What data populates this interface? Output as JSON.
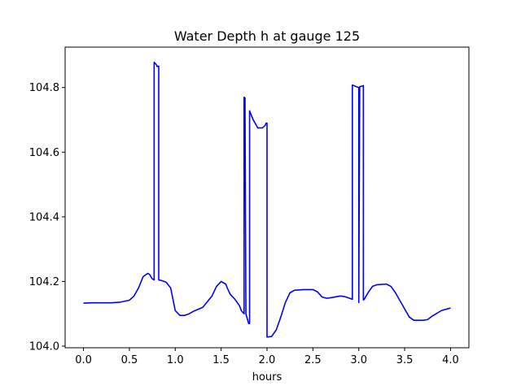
{
  "chart_data": {
    "type": "line",
    "title": "Water Depth h at gauge 125",
    "xlabel": "hours",
    "ylabel": "",
    "xlim": [
      -0.2,
      4.2
    ],
    "ylim": [
      103.995,
      104.925
    ],
    "x_ticks": [
      0.0,
      0.5,
      1.0,
      1.5,
      2.0,
      2.5,
      3.0,
      3.5,
      4.0
    ],
    "x_tick_labels": [
      "0.0",
      "0.5",
      "1.0",
      "1.5",
      "2.0",
      "2.5",
      "3.0",
      "3.5",
      "4.0"
    ],
    "y_ticks": [
      104.0,
      104.2,
      104.4,
      104.6,
      104.8
    ],
    "y_tick_labels": [
      "104.0",
      "104.2",
      "104.4",
      "104.6",
      "104.8"
    ],
    "grid": false,
    "series": [
      {
        "color": "#0000ff",
        "x": [
          0.0,
          0.1,
          0.2,
          0.3,
          0.4,
          0.5,
          0.55,
          0.6,
          0.65,
          0.7,
          0.72,
          0.75,
          0.77,
          0.77,
          0.79,
          0.8,
          0.8,
          0.82,
          0.82,
          0.85,
          0.9,
          0.95,
          1.0,
          1.05,
          1.1,
          1.15,
          1.2,
          1.3,
          1.4,
          1.45,
          1.5,
          1.55,
          1.57,
          1.6,
          1.65,
          1.7,
          1.72,
          1.75,
          1.75,
          1.76,
          1.77,
          1.8,
          1.81,
          1.81,
          1.85,
          1.9,
          1.95,
          1.98,
          1.99,
          2.0,
          2.0,
          2.05,
          2.1,
          2.15,
          2.2,
          2.25,
          2.3,
          2.4,
          2.5,
          2.55,
          2.6,
          2.65,
          2.7,
          2.8,
          2.85,
          2.9,
          2.93,
          2.93,
          2.97,
          3.0,
          3.0,
          3.01,
          3.02,
          3.05,
          3.05,
          3.06,
          3.1,
          3.15,
          3.2,
          3.3,
          3.35,
          3.4,
          3.5,
          3.55,
          3.6,
          3.7,
          3.75,
          3.8,
          3.9,
          4.0
        ],
        "y": [
          104.133,
          104.134,
          104.134,
          104.134,
          104.136,
          104.142,
          104.155,
          104.18,
          104.215,
          104.225,
          104.222,
          104.208,
          104.205,
          104.878,
          104.872,
          104.868,
          104.865,
          104.866,
          104.205,
          104.203,
          104.198,
          104.18,
          104.11,
          104.095,
          104.095,
          104.1,
          104.108,
          104.12,
          104.155,
          104.185,
          104.2,
          104.192,
          104.178,
          104.16,
          104.145,
          104.125,
          104.11,
          104.1,
          104.77,
          104.768,
          104.1,
          104.07,
          104.07,
          104.728,
          104.7,
          104.675,
          104.675,
          104.683,
          104.69,
          104.69,
          104.028,
          104.03,
          104.05,
          104.09,
          104.135,
          104.165,
          104.173,
          104.175,
          104.175,
          104.168,
          104.152,
          104.148,
          104.15,
          104.155,
          104.153,
          104.148,
          104.145,
          104.808,
          104.803,
          104.8,
          104.135,
          104.803,
          104.803,
          104.806,
          104.143,
          104.145,
          104.165,
          104.185,
          104.19,
          104.192,
          104.185,
          104.165,
          104.115,
          104.09,
          104.08,
          104.08,
          104.082,
          104.093,
          104.11,
          104.118
        ]
      }
    ]
  }
}
